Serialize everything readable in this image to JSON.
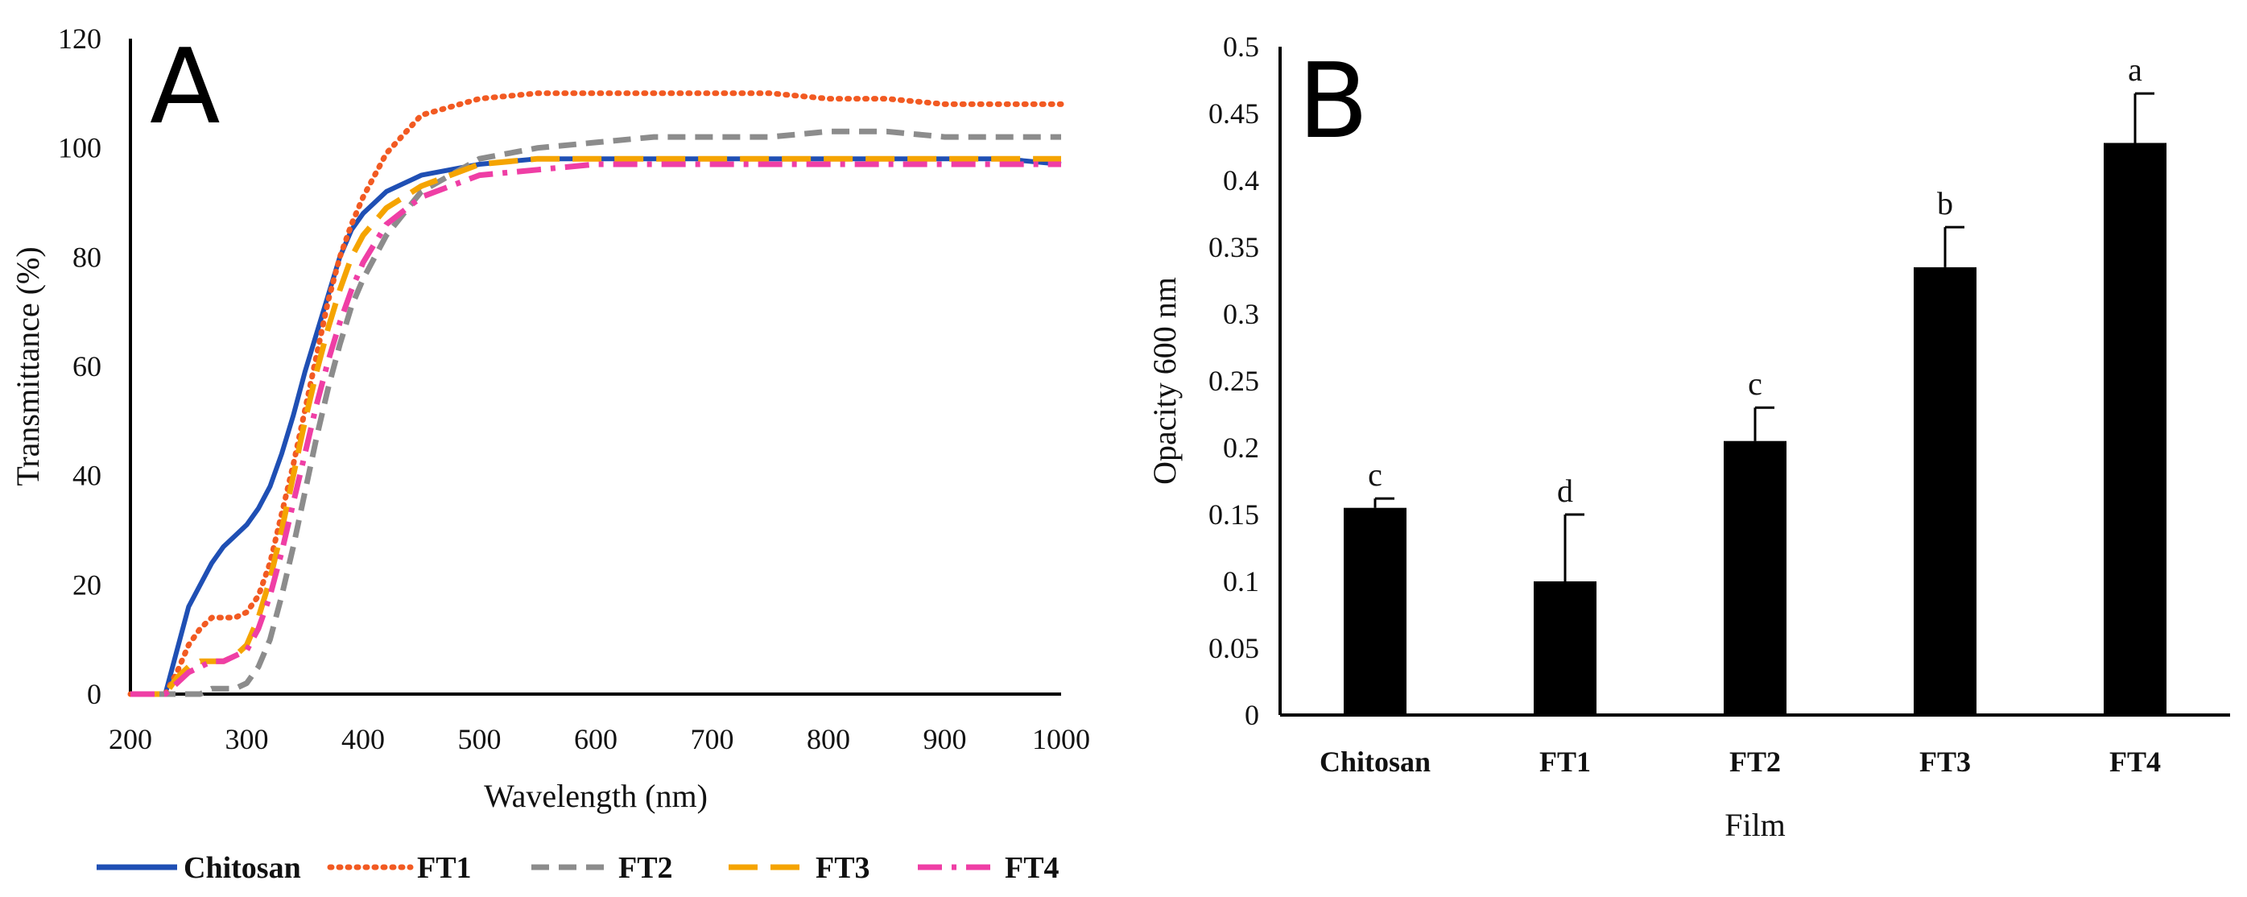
{
  "chart_data": [
    {
      "type": "line",
      "panel_label": "A",
      "xlabel": "Wavelength (nm)",
      "ylabel": "Transmittance (%)",
      "xlim": [
        200,
        1000
      ],
      "ylim": [
        0,
        120
      ],
      "xticks": [
        "200",
        "300",
        "400",
        "500",
        "600",
        "700",
        "800",
        "900",
        "1000"
      ],
      "yticks": [
        "0",
        "20",
        "40",
        "60",
        "80",
        "100",
        "120"
      ],
      "x": [
        200,
        230,
        240,
        250,
        260,
        270,
        280,
        290,
        300,
        310,
        320,
        330,
        340,
        350,
        360,
        370,
        380,
        390,
        400,
        420,
        450,
        500,
        550,
        600,
        650,
        700,
        750,
        800,
        850,
        900,
        950,
        1000
      ],
      "series": [
        {
          "name": "Chitosan",
          "color": "#1f4fb4",
          "dash": "solid",
          "values": [
            0,
            0,
            8,
            16,
            20,
            24,
            27,
            29,
            31,
            34,
            38,
            44,
            51,
            59,
            66,
            73,
            80,
            85,
            88,
            92,
            95,
            97,
            98,
            98,
            98,
            98,
            98,
            98,
            98,
            98,
            98,
            97
          ]
        },
        {
          "name": "FT1",
          "color": "#f25a22",
          "dash": "dotted",
          "values": [
            0,
            0,
            4,
            9,
            12,
            14,
            14,
            14,
            15,
            18,
            24,
            33,
            42,
            52,
            62,
            72,
            80,
            86,
            91,
            99,
            106,
            109,
            110,
            110,
            110,
            110,
            110,
            109,
            109,
            108,
            108,
            108
          ]
        },
        {
          "name": "FT2",
          "color": "#8c8c8c",
          "dash": "dashed",
          "values": [
            0,
            0,
            0,
            0,
            0,
            1,
            1,
            1,
            2,
            5,
            10,
            18,
            27,
            37,
            47,
            56,
            64,
            71,
            76,
            84,
            92,
            98,
            100,
            101,
            102,
            102,
            102,
            103,
            103,
            102,
            102,
            102
          ]
        },
        {
          "name": "FT3",
          "color": "#f5a400",
          "dash": "longdash",
          "values": [
            0,
            0,
            3,
            5,
            6,
            6,
            6,
            7,
            9,
            14,
            21,
            30,
            40,
            50,
            59,
            67,
            74,
            80,
            84,
            89,
            93,
            97,
            98,
            98,
            98,
            98,
            98,
            98,
            98,
            98,
            98,
            98
          ]
        },
        {
          "name": "FT4",
          "color": "#ef3ea5",
          "dash": "dashdot",
          "values": [
            0,
            0,
            2,
            4,
            5,
            6,
            6,
            7,
            8,
            12,
            18,
            26,
            35,
            44,
            53,
            61,
            68,
            74,
            79,
            86,
            91,
            95,
            96,
            97,
            97,
            97,
            97,
            97,
            97,
            97,
            97,
            97
          ]
        }
      ]
    },
    {
      "type": "bar",
      "panel_label": "B",
      "xlabel": "Film",
      "ylabel": "Opacity 600 nm",
      "ylim": [
        0,
        0.5
      ],
      "yticks": [
        "0",
        "0.05",
        "0.1",
        "0.15",
        "0.2",
        "0.25",
        "0.3",
        "0.35",
        "0.4",
        "0.45",
        "0.5"
      ],
      "categories": [
        "Chitosan",
        "FT1",
        "FT2",
        "FT3",
        "FT4"
      ],
      "values": [
        0.155,
        0.1,
        0.205,
        0.335,
        0.428
      ],
      "errors": [
        0.007,
        0.05,
        0.025,
        0.03,
        0.037
      ],
      "letters": [
        "c",
        "d",
        "c",
        "b",
        "a"
      ]
    }
  ]
}
